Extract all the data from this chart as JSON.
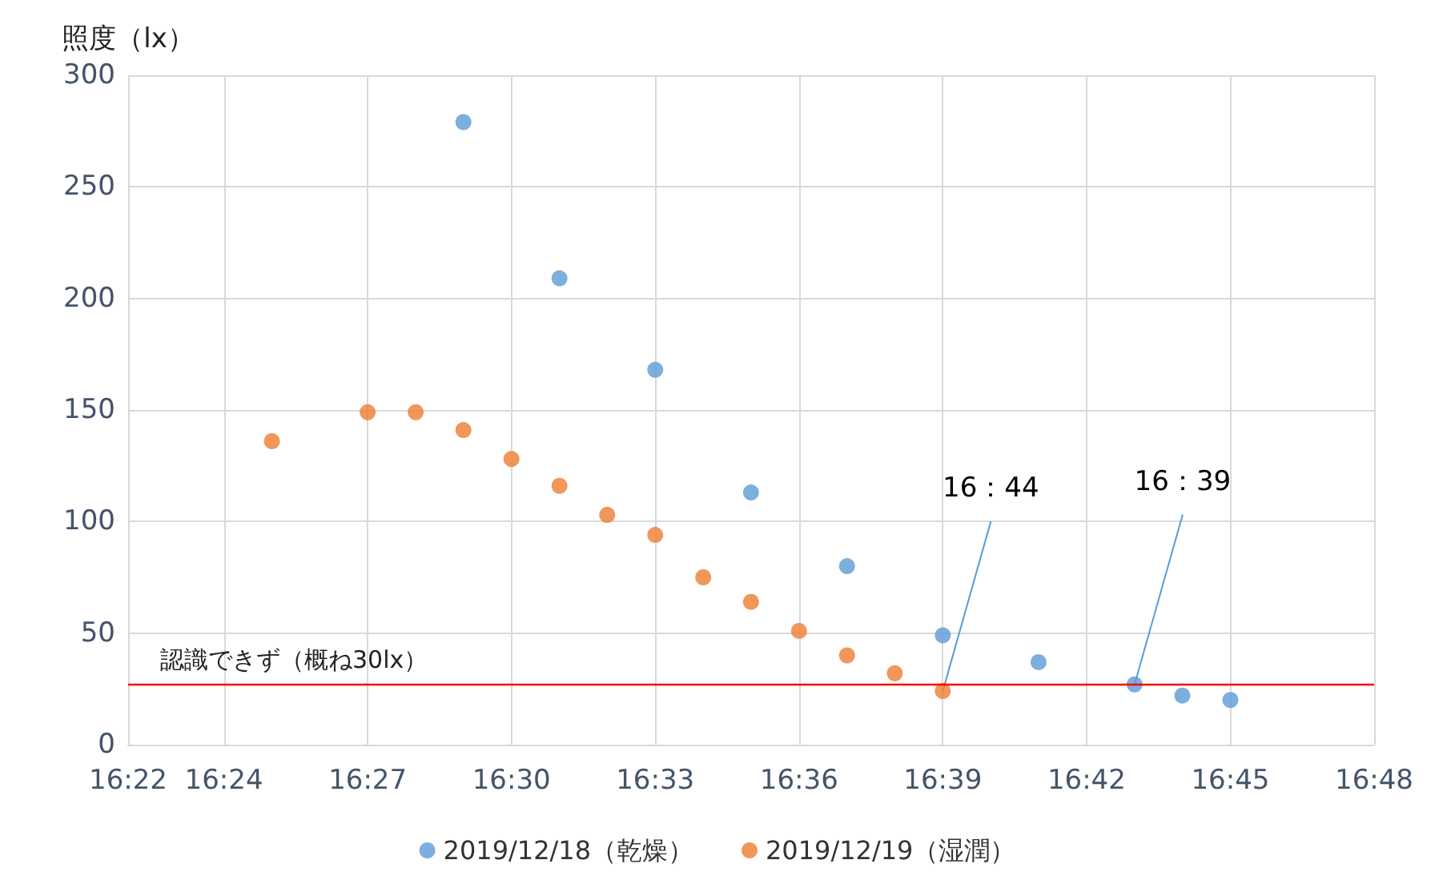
{
  "chart_data": {
    "type": "scatter",
    "ylabel": "照度（lx）",
    "xlim": [
      16.3667,
      16.8
    ],
    "xticks": [
      {
        "value": 16.3667,
        "label": "16:22"
      },
      {
        "value": 16.4,
        "label": "16:24"
      },
      {
        "value": 16.45,
        "label": "16:27"
      },
      {
        "value": 16.5,
        "label": "16:30"
      },
      {
        "value": 16.55,
        "label": "16:33"
      },
      {
        "value": 16.6,
        "label": "16:36"
      },
      {
        "value": 16.65,
        "label": "16:39"
      },
      {
        "value": 16.7,
        "label": "16:42"
      },
      {
        "value": 16.75,
        "label": "16:45"
      },
      {
        "value": 16.8,
        "label": "16:48"
      }
    ],
    "ylim": [
      0,
      300
    ],
    "yticks": [
      0,
      50,
      100,
      150,
      200,
      250,
      300
    ],
    "series": [
      {
        "name": "2019/12/18（乾燥）",
        "color": "#5b9bd5",
        "x": [
          16.4833,
          16.5167,
          16.55,
          16.5833,
          16.6167,
          16.65,
          16.6833,
          16.7167,
          16.7333,
          16.75
        ],
        "values": [
          279,
          209,
          168,
          113,
          80,
          49,
          37,
          27,
          22,
          20
        ]
      },
      {
        "name": "2019/12/19（湿潤）",
        "color": "#ed7d31",
        "x": [
          16.4167,
          16.45,
          16.4667,
          16.4833,
          16.5,
          16.5167,
          16.5333,
          16.55,
          16.5667,
          16.5833,
          16.6,
          16.6167,
          16.6333,
          16.65
        ],
        "values": [
          136,
          149,
          149,
          141,
          128,
          116,
          103,
          94,
          75,
          64,
          51,
          40,
          32,
          24
        ]
      }
    ],
    "ref_lines": [
      {
        "axis": "y",
        "value": 27,
        "label": "認識できず（概ね30lx）",
        "color": "#ff0000"
      }
    ],
    "annotations": [
      {
        "text": "16：44",
        "x": 16.65,
        "y": 24
      },
      {
        "text": "16：39",
        "x": 16.7167,
        "y": 27
      }
    ],
    "grid": true,
    "legend": "bottom",
    "marker": "circle"
  }
}
